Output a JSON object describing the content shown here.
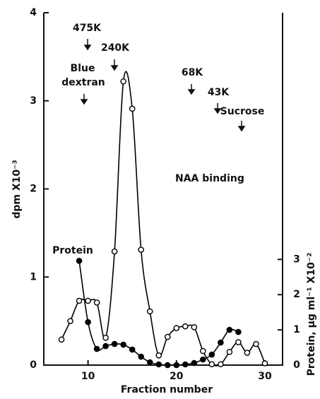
{
  "chart_data": {
    "type": "line",
    "xlabel": "Fraction number",
    "ylabel": "dpm X10⁻³",
    "y2label": "Protein, μg ml⁻¹ X10⁻²",
    "xlim": [
      5,
      32
    ],
    "xticks": [
      10,
      20,
      30
    ],
    "ylim": [
      0,
      4
    ],
    "yticks": [
      0,
      1,
      2,
      3,
      4
    ],
    "y2lim": [
      0,
      10
    ],
    "y2ticks": [
      0,
      1,
      2,
      3
    ],
    "series": [
      {
        "name": "NAA binding",
        "color": "#000000",
        "marker": "open",
        "x": [
          7,
          8,
          9,
          10,
          11,
          12,
          13,
          14,
          15,
          16,
          17,
          18,
          19,
          20,
          21,
          22,
          23,
          24,
          25,
          26,
          27,
          28,
          29,
          30
        ],
        "values": [
          0.29,
          0.5,
          0.73,
          0.73,
          0.71,
          0.31,
          1.29,
          3.22,
          2.91,
          1.31,
          0.61,
          0.11,
          0.32,
          0.42,
          0.44,
          0.43,
          0.16,
          0.01,
          0.01,
          0.15,
          0.26,
          0.14,
          0.24,
          0.02
        ]
      },
      {
        "name": "Protein",
        "color": "#000000",
        "marker": "filled",
        "axis": "y2",
        "x": [
          9,
          10,
          11,
          12,
          13,
          14,
          15,
          16,
          17,
          18,
          19,
          20,
          21,
          22,
          23,
          24,
          25,
          26,
          27
        ],
        "values": [
          2.96,
          1.22,
          0.46,
          0.54,
          0.6,
          0.58,
          0.44,
          0.24,
          0.08,
          0.02,
          0,
          0,
          0.02,
          0.06,
          0.16,
          0.3,
          0.64,
          1.0,
          0.94
        ]
      }
    ],
    "annotations": [
      "475K",
      "240K",
      "Blue",
      "dextran",
      "68K",
      "43K",
      "Sucrose"
    ]
  }
}
